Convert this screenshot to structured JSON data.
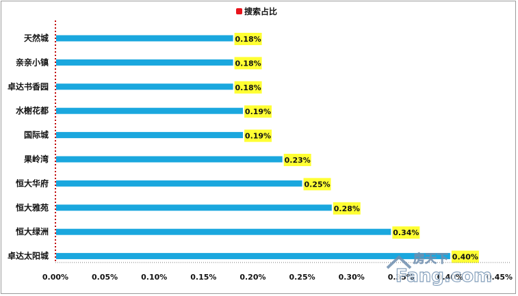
{
  "chart_data": {
    "type": "bar",
    "orientation": "horizontal",
    "title": "",
    "legend": {
      "position": "top",
      "entries": [
        "搜索占比"
      ]
    },
    "categories": [
      "天然城",
      "亲亲小镇",
      "卓达书香园",
      "水榭花都",
      "国际城",
      "果岭湾",
      "恒大华府",
      "恒大雅苑",
      "恒大绿洲",
      "卓达太阳城"
    ],
    "series": [
      {
        "name": "搜索占比",
        "color": "#1aa7de",
        "values": [
          0.18,
          0.18,
          0.18,
          0.19,
          0.19,
          0.23,
          0.25,
          0.28,
          0.34,
          0.4
        ],
        "labels": [
          "0.18%",
          "0.18%",
          "0.18%",
          "0.19%",
          "0.19%",
          "0.23%",
          "0.25%",
          "0.28%",
          "0.34%",
          "0.40%"
        ]
      }
    ],
    "xlim": [
      0,
      0.45
    ],
    "xticks": [
      "0.00%",
      "0.05%",
      "0.10%",
      "0.15%",
      "0.20%",
      "0.25%",
      "0.30%",
      "0.35%",
      "0.40%",
      "0.45%"
    ],
    "grid": false,
    "data_label_bg": "#ffff33",
    "axis_color": "#c00000"
  },
  "watermark": {
    "top": "房天下",
    "bottom": "Fang.com"
  }
}
